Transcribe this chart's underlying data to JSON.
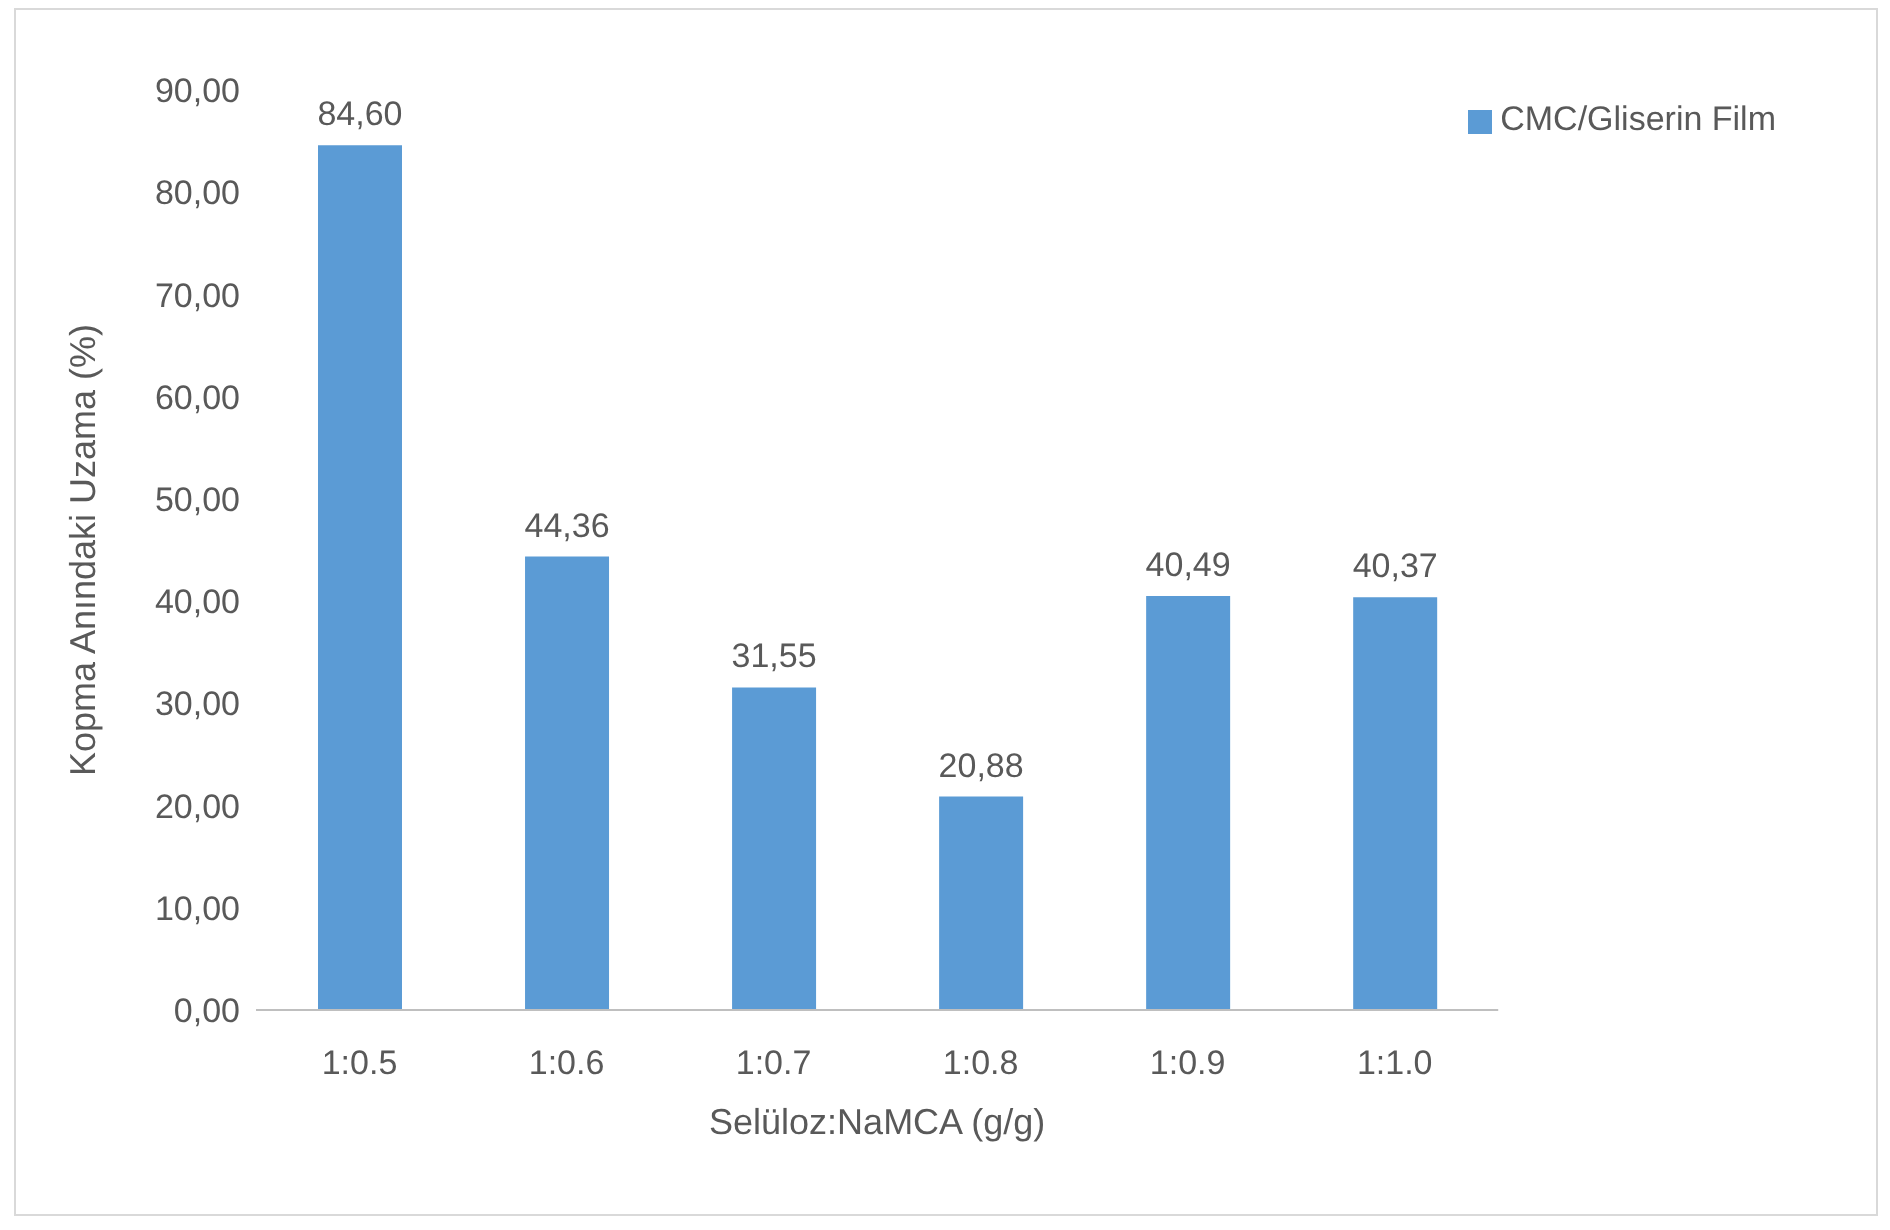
{
  "chart_data": {
    "type": "bar",
    "xlabel": "Selüloz:NaMCA (g/g)",
    "ylabel": "Kopma Anındaki Uzama (%)",
    "categories": [
      "1:0.5",
      "1:0.6",
      "1:0.7",
      "1:0.8",
      "1:0.9",
      "1:1.0"
    ],
    "series": [
      {
        "name": "CMC/Gliserin Film",
        "color": "#5b9bd5",
        "values": [
          84.6,
          44.36,
          31.55,
          20.88,
          40.49,
          40.37
        ],
        "value_labels": [
          "84,60",
          "44,36",
          "31,55",
          "20,88",
          "40,49",
          "40,37"
        ]
      }
    ],
    "ylim": [
      0,
      90
    ],
    "yticks": [
      {
        "value": 0,
        "label": "0,00"
      },
      {
        "value": 10,
        "label": "10,00"
      },
      {
        "value": 20,
        "label": "20,00"
      },
      {
        "value": 30,
        "label": "30,00"
      },
      {
        "value": 40,
        "label": "40,00"
      },
      {
        "value": 50,
        "label": "50,00"
      },
      {
        "value": 60,
        "label": "60,00"
      },
      {
        "value": 70,
        "label": "70,00"
      },
      {
        "value": 80,
        "label": "80,00"
      },
      {
        "value": 90,
        "label": "90,00"
      }
    ],
    "grid": false,
    "legend": "top right"
  }
}
